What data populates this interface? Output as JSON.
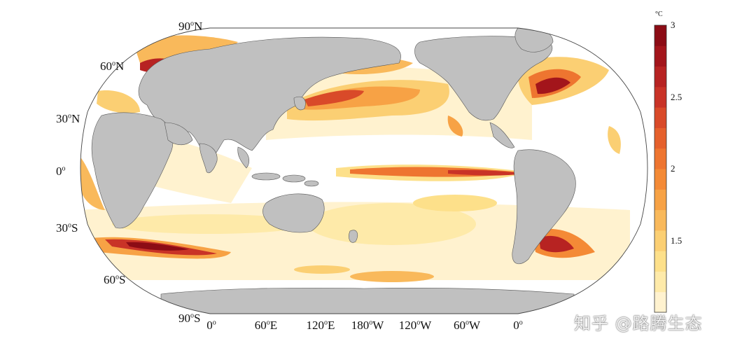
{
  "colorbar": {
    "unit": "°C",
    "min": 1.0,
    "max": 3.0,
    "ticks": [
      "1.5",
      "2",
      "2.5",
      "3"
    ],
    "colors": [
      "#fff2cf",
      "#feeaa9",
      "#fde08a",
      "#fbcf73",
      "#f9b95b",
      "#f7a245",
      "#f48a36",
      "#ee7530",
      "#e5602c",
      "#d94a29",
      "#c93327",
      "#b72322",
      "#a3151b",
      "#8c0c15"
    ]
  },
  "lat_labels": [
    {
      "deg": "90",
      "hemi": "N"
    },
    {
      "deg": "60",
      "hemi": "N"
    },
    {
      "deg": "30",
      "hemi": "N"
    },
    {
      "deg": "0",
      "hemi": ""
    },
    {
      "deg": "30",
      "hemi": "S"
    },
    {
      "deg": "60",
      "hemi": "S"
    },
    {
      "deg": "90",
      "hemi": "S"
    }
  ],
  "lon_labels": [
    {
      "deg": "0",
      "hemi": ""
    },
    {
      "deg": "60",
      "hemi": "E"
    },
    {
      "deg": "120",
      "hemi": "E"
    },
    {
      "deg": "180",
      "hemi": "W"
    },
    {
      "deg": "120",
      "hemi": "W"
    },
    {
      "deg": "60",
      "hemi": "W"
    },
    {
      "deg": "0",
      "hemi": ""
    }
  ],
  "colors": {
    "land": "#c0c0c0",
    "coast": "#555555",
    "ocean": "#ffffff"
  },
  "watermark": "知乎 @路腾生态"
}
